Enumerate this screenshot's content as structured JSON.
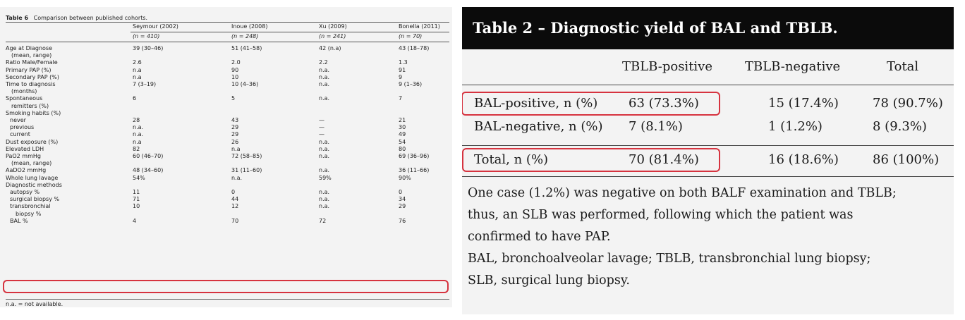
{
  "table6": {
    "caption_label": "Table 6",
    "caption_text": "Comparison between published cohorts.",
    "columns": [
      {
        "name": "Seymour (2002)",
        "n": "(n = 410)"
      },
      {
        "name": "Inoue (2008)",
        "n": "(n = 248)"
      },
      {
        "name": "Xu (2009)",
        "n": "(n = 241)"
      },
      {
        "name": "Bonella (2011)",
        "n": "(n = 70)"
      }
    ],
    "rows": [
      {
        "label": "Age at Diagnose",
        "sub": "(mean, range)",
        "values": [
          "39 (30–46)",
          "51 (41–58)",
          "42 (n.a)",
          "43 (18–78)"
        ]
      },
      {
        "label": "Ratio Male/Female",
        "values": [
          "2.6",
          "2.0",
          "2.2",
          "1.3"
        ]
      },
      {
        "label": "Primary PAP (%)",
        "values": [
          "n.a",
          "90",
          "n.a.",
          "91"
        ]
      },
      {
        "label": "Secondary PAP (%)",
        "values": [
          "n.a",
          "10",
          "n.a.",
          "9"
        ]
      },
      {
        "label": "Time to diagnosis",
        "sub": "(months)",
        "values": [
          "7 (3–19)",
          "10 (4–36)",
          "n.a.",
          "9 (1–36)"
        ]
      },
      {
        "label": "Spontaneous",
        "sub": "remitters (%)",
        "values": [
          "6",
          "5",
          "n.a.",
          "7"
        ]
      },
      {
        "label": "Smoking habits (%)",
        "values": [
          "",
          "",
          "",
          ""
        ]
      },
      {
        "label": "never",
        "indent": true,
        "values": [
          "28",
          "43",
          "—",
          "21"
        ]
      },
      {
        "label": "previous",
        "indent": true,
        "values": [
          "n.a.",
          "29",
          "—",
          "30"
        ]
      },
      {
        "label": "current",
        "indent": true,
        "values": [
          "n.a.",
          "29",
          "—",
          "49"
        ]
      },
      {
        "label": "Dust exposure (%)",
        "values": [
          "n.a",
          "26",
          "n.a.",
          "54"
        ]
      },
      {
        "label": "Elevated LDH",
        "values": [
          "82",
          "n.a",
          "n.a.",
          "80"
        ]
      },
      {
        "label": "PaO2 mmHg",
        "sub": "(mean, range)",
        "values": [
          "60 (46–70)",
          "72 (58–85)",
          "n.a.",
          "69 (36–96)"
        ]
      },
      {
        "label": "AaDO2 mmHg",
        "values": [
          "48 (34–60)",
          "31 (11–60)",
          "n.a.",
          "36 (11–66)"
        ]
      },
      {
        "label": "Whole lung lavage",
        "values": [
          "54%",
          "n.a.",
          "59%",
          "90%"
        ]
      },
      {
        "label": "Diagnostic methods",
        "values": [
          "",
          "",
          "",
          ""
        ]
      },
      {
        "label": "autopsy %",
        "indent": true,
        "values": [
          "11",
          "0",
          "n.a.",
          "0"
        ]
      },
      {
        "label": "surgical biopsy %",
        "indent": true,
        "values": [
          "71",
          "44",
          "n.a.",
          "34"
        ]
      },
      {
        "label": "transbronchial",
        "sub": "biopsy %",
        "indent": true,
        "values": [
          "10",
          "12",
          "n.a.",
          "29"
        ]
      },
      {
        "label": "BAL %",
        "indent": true,
        "values": [
          "4",
          "70",
          "72",
          "76"
        ]
      }
    ],
    "footnote": "n.a. = not available."
  },
  "table2": {
    "title": "Table 2 – Diagnostic yield of BAL and TBLB.",
    "headers": [
      "TBLB-positive",
      "TBLB-negative",
      "Total"
    ],
    "rows": [
      {
        "label": "BAL-positive, n (%)",
        "values": [
          "63 (73.3%)",
          "15 (17.4%)",
          "78 (90.7%)"
        ]
      },
      {
        "label": "BAL-negative, n (%)",
        "values": [
          "7 (8.1%)",
          "1 (1.2%)",
          "8 (9.3%)"
        ]
      },
      {
        "label": "Total, n (%)",
        "values": [
          "70 (81.4%)",
          "16 (18.6%)",
          "86 (100%)"
        ]
      }
    ],
    "note_lines": [
      "One case (1.2%) was negative on both BALF examination and TBLB;",
      "thus, an SLB was performed, following which the patient was",
      "confirmed to have PAP."
    ],
    "abbrev_lines": [
      "BAL, bronchoalveolar lavage; TBLB, transbronchial lung biopsy;",
      "SLB, surgical lung biopsy."
    ]
  },
  "highlight_color": "#d6333f"
}
